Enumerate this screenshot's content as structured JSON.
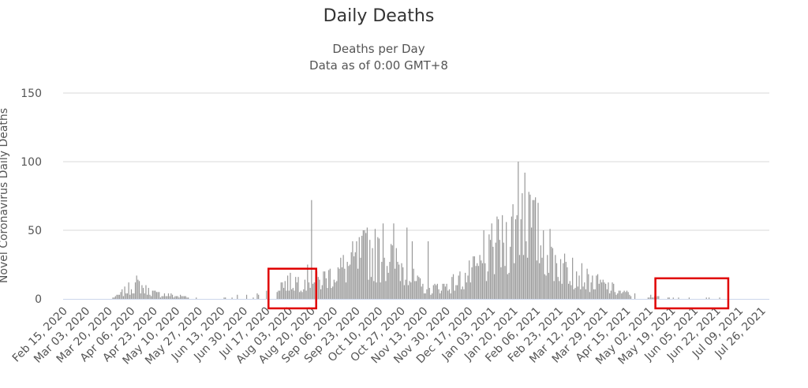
{
  "chart_data": {
    "type": "bar",
    "title": "Daily Deaths",
    "subtitle_lines": [
      "Deaths per Day",
      "Data as of 0:00 GMT+8"
    ],
    "ylabel": "Novel Coronavirus Daily Deaths",
    "xlabel": "",
    "ylim": [
      0,
      150
    ],
    "yticks": [
      0,
      50,
      100,
      150
    ],
    "grid": true,
    "start_date": "2020-02-15",
    "end_date": "2021-07-31",
    "x_tick_labels": [
      "Feb 15, 2020",
      "Mar 03, 2020",
      "Mar 20, 2020",
      "Apr 06, 2020",
      "Apr 23, 2020",
      "May 10, 2020",
      "May 27, 2020",
      "Jun 13, 2020",
      "Jun 30, 2020",
      "Jul 17, 2020",
      "Aug 03, 2020",
      "Aug 20, 2020",
      "Sep 06, 2020",
      "Sep 23, 2020",
      "Oct 10, 2020",
      "Oct 27, 2020",
      "Nov 13, 2020",
      "Nov 30, 2020",
      "Dec 17, 2020",
      "Jan 03, 2021",
      "Jan 20, 2021",
      "Feb 06, 2021",
      "Feb 23, 2021",
      "Mar 12, 2021",
      "Mar 29, 2021",
      "Apr 15, 2021",
      "May 02, 2021",
      "May 19, 2021",
      "Jun 05, 2021",
      "Jun 22, 2021",
      "Jul 09, 2021",
      "Jul 26, 2021"
    ],
    "series": [
      {
        "name": "Deaths per Day",
        "color": "#999999",
        "anchors": [
          [
            0,
            0
          ],
          [
            36,
            0
          ],
          [
            40,
            2
          ],
          [
            45,
            5
          ],
          [
            50,
            8
          ],
          [
            55,
            11
          ],
          [
            60,
            8
          ],
          [
            65,
            5
          ],
          [
            70,
            4
          ],
          [
            75,
            3
          ],
          [
            80,
            3
          ],
          [
            85,
            2
          ],
          [
            90,
            2
          ],
          [
            95,
            1
          ],
          [
            100,
            2
          ],
          [
            105,
            1
          ],
          [
            110,
            1
          ],
          [
            115,
            1
          ],
          [
            120,
            1
          ],
          [
            125,
            1
          ],
          [
            130,
            2
          ],
          [
            135,
            2
          ],
          [
            140,
            3
          ],
          [
            145,
            3
          ],
          [
            150,
            5
          ],
          [
            155,
            7
          ],
          [
            160,
            9
          ],
          [
            165,
            11
          ],
          [
            170,
            12
          ],
          [
            175,
            13
          ],
          [
            180,
            14
          ],
          [
            185,
            16
          ],
          [
            188,
            14
          ],
          [
            190,
            12
          ],
          [
            195,
            14
          ],
          [
            200,
            17
          ],
          [
            205,
            19
          ],
          [
            210,
            22
          ],
          [
            215,
            24
          ],
          [
            220,
            28
          ],
          [
            225,
            32
          ],
          [
            230,
            35
          ],
          [
            235,
            33
          ],
          [
            240,
            30
          ],
          [
            245,
            31
          ],
          [
            250,
            28
          ],
          [
            255,
            24
          ],
          [
            260,
            18
          ],
          [
            265,
            13
          ],
          [
            270,
            9
          ],
          [
            275,
            7
          ],
          [
            280,
            8
          ],
          [
            285,
            9
          ],
          [
            290,
            10
          ],
          [
            295,
            12
          ],
          [
            300,
            14
          ],
          [
            305,
            17
          ],
          [
            310,
            20
          ],
          [
            315,
            24
          ],
          [
            320,
            28
          ],
          [
            325,
            34
          ],
          [
            330,
            38
          ],
          [
            335,
            45
          ],
          [
            340,
            52
          ],
          [
            345,
            60
          ],
          [
            350,
            57
          ],
          [
            355,
            50
          ],
          [
            360,
            42
          ],
          [
            365,
            35
          ],
          [
            370,
            30
          ],
          [
            375,
            25
          ],
          [
            380,
            22
          ],
          [
            385,
            20
          ],
          [
            390,
            18
          ],
          [
            395,
            14
          ],
          [
            400,
            12
          ],
          [
            405,
            11
          ],
          [
            410,
            9
          ],
          [
            415,
            7
          ],
          [
            420,
            5
          ],
          [
            425,
            4
          ],
          [
            430,
            3
          ],
          [
            435,
            3
          ],
          [
            440,
            2
          ],
          [
            445,
            2
          ],
          [
            450,
            1
          ],
          [
            455,
            1
          ],
          [
            460,
            1
          ],
          [
            465,
            1
          ],
          [
            470,
            1
          ],
          [
            475,
            1
          ],
          [
            480,
            1
          ],
          [
            485,
            1
          ],
          [
            490,
            1
          ],
          [
            495,
            1
          ],
          [
            501,
            2
          ]
        ],
        "spikes": [
          [
            187,
            72
          ],
          [
            343,
            100
          ],
          [
            346,
            77
          ],
          [
            348,
            92
          ],
          [
            351,
            78
          ],
          [
            327,
            60
          ],
          [
            323,
            55
          ],
          [
            317,
            50
          ],
          [
            275,
            42
          ],
          [
            241,
            55
          ],
          [
            249,
            55
          ],
          [
            259,
            52
          ],
          [
            229,
            52
          ],
          [
            263,
            42
          ],
          [
            362,
            50
          ],
          [
            384,
            30
          ]
        ],
        "zero_gaps": [
          [
            95,
            160
          ],
          [
            428,
            440
          ],
          [
            450,
            501
          ]
        ]
      }
    ]
  },
  "highlights": [
    {
      "label": "highlight-jul-aug-2020",
      "start_day": 155,
      "end_day": 191,
      "y_top": 22
    },
    {
      "label": "highlight-jun-jul-2021",
      "start_day": 447,
      "end_day": 502,
      "y_top": 15
    }
  ]
}
